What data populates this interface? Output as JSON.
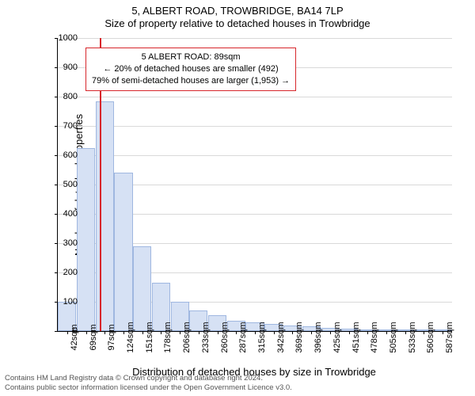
{
  "title_main": "5, ALBERT ROAD, TROWBRIDGE, BA14 7LP",
  "title_sub": "Size of property relative to detached houses in Trowbridge",
  "y_axis_label": "Number of detached properties",
  "x_axis_label": "Distribution of detached houses by size in Trowbridge",
  "chart": {
    "type": "histogram",
    "ylim": [
      0,
      1000
    ],
    "ytick_step": 100,
    "bar_fill": "#d6e1f4",
    "bar_stroke": "#9fb7e0",
    "grid_color": "#d9d9d9",
    "background": "#ffffff",
    "xticks": [
      "42sqm",
      "69sqm",
      "97sqm",
      "124sqm",
      "151sqm",
      "178sqm",
      "206sqm",
      "233sqm",
      "260sqm",
      "287sqm",
      "315sqm",
      "342sqm",
      "369sqm",
      "396sqm",
      "425sqm",
      "451sqm",
      "478sqm",
      "505sqm",
      "533sqm",
      "560sqm",
      "587sqm"
    ],
    "values": [
      100,
      625,
      785,
      540,
      290,
      165,
      100,
      70,
      55,
      35,
      30,
      25,
      18,
      15,
      10,
      8,
      5,
      3,
      2,
      2,
      1
    ],
    "marker_value_sqm": 89,
    "marker_color": "#d7262b"
  },
  "annotation": {
    "line1": "5 ALBERT ROAD: 89sqm",
    "line2": "← 20% of detached houses are smaller (492)",
    "line3": "79% of semi-detached houses are larger (1,953) →",
    "border_color": "#d7262b"
  },
  "footer": {
    "line1": "Contains HM Land Registry data © Crown copyright and database right 2024.",
    "line2": "Contains public sector information licensed under the Open Government Licence v3.0."
  },
  "fonts": {
    "title": 13,
    "axis_label": 13,
    "tick": 11,
    "annotation": 11,
    "footer": 9.5
  }
}
